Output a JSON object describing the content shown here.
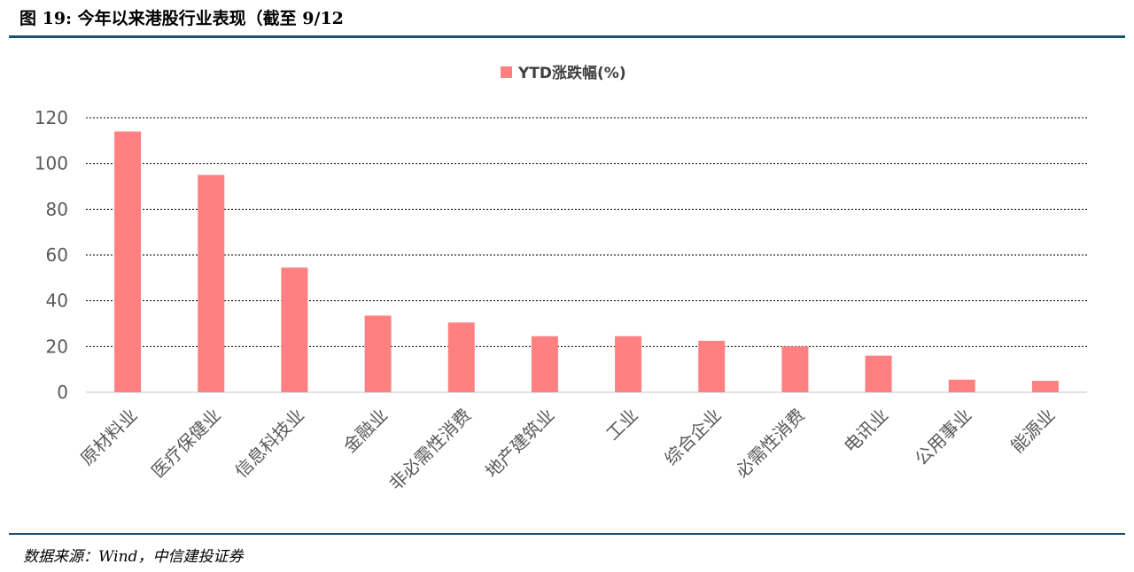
{
  "figure": {
    "title": "图 19:  今年以来港股行业表现（截至 9/12",
    "source": "数据来源：Wind，中信建投证券"
  },
  "colors": {
    "bar": "#ff8080",
    "rule": "#1b4f73",
    "grid": "#000000",
    "axis_text": "#595959"
  },
  "chart_data": {
    "type": "bar",
    "categories": [
      "原材料业",
      "医疗保健业",
      "信息科技业",
      "金融业",
      "非必需性消费",
      "地产建筑业",
      "工业",
      "综合企业",
      "必需性消费",
      "电讯业",
      "公用事业",
      "能源业"
    ],
    "series": [
      {
        "name": "YTD涨跌幅(%)",
        "values": [
          114,
          95,
          54.5,
          33.5,
          30.5,
          24.5,
          24.5,
          22.5,
          20,
          16,
          5.5,
          5
        ]
      }
    ],
    "ylim": [
      0,
      120
    ],
    "yticks": [
      0,
      20,
      40,
      60,
      80,
      100,
      120
    ],
    "grid": true,
    "grid_style": "dashed",
    "legend_position": "top-center"
  }
}
